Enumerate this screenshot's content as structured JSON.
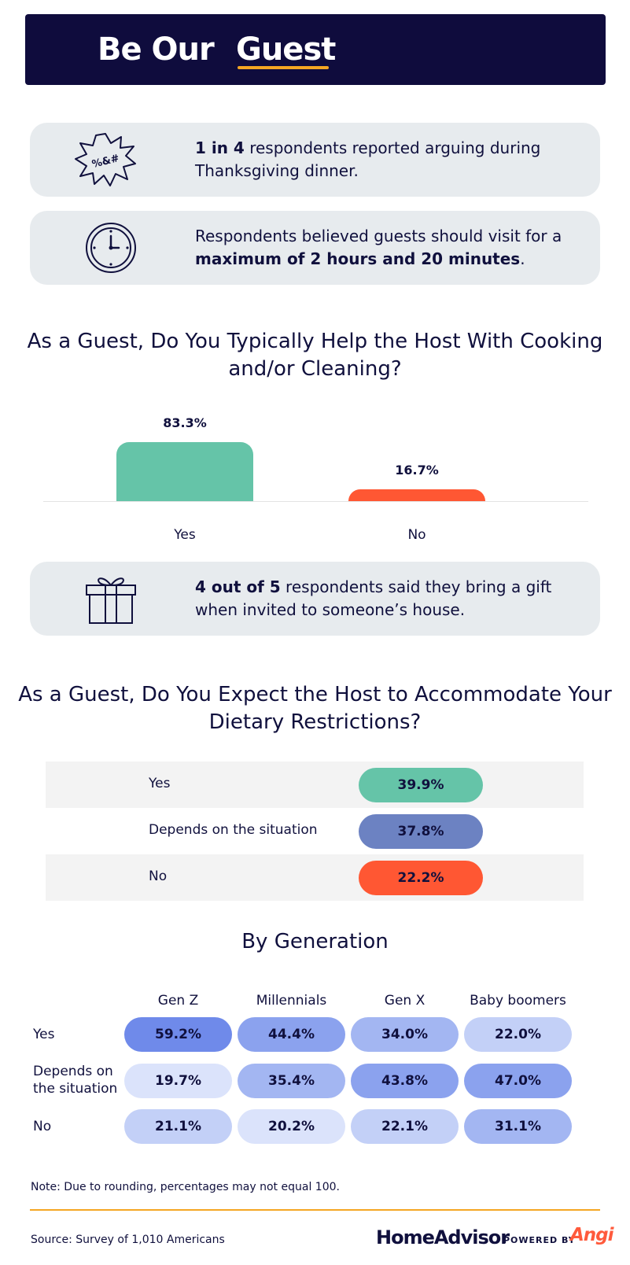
{
  "header": {
    "title_part1": "Be Our",
    "title_part2": "Guest",
    "accent": "#f5a623",
    "background": "#0f0c3d"
  },
  "facts": [
    {
      "icon": "grawlix-burst-icon",
      "bold": "1 in 4",
      "text": " respondents reported arguing during Thanksgiving dinner.",
      "after": ""
    },
    {
      "icon": "clock-icon",
      "lead": "Respondents believed guests should visit for a ",
      "bold": "maximum of 2 hours and 20 minutes",
      "after": "."
    },
    {
      "icon": "gift-icon",
      "bold": "4 out of 5",
      "text": " respondents said they bring a gift when invited to someone’s house.",
      "after": ""
    }
  ],
  "chart_data": [
    {
      "type": "bar",
      "title": "As a Guest, Do You Typically Help the Host With Cooking and/or Cleaning?",
      "categories": [
        "Yes",
        "No"
      ],
      "values": [
        83.3,
        16.7
      ],
      "value_labels": [
        "83.3%",
        "16.7%"
      ],
      "colors": [
        "#65c4a8",
        "#ff5733"
      ],
      "ylim": [
        0,
        100
      ],
      "grid": false
    },
    {
      "type": "table",
      "title": "As a Guest, Do You Expect the Host to Accommodate Your Dietary Restrictions?",
      "rows": [
        {
          "label": "Yes",
          "value": 39.9,
          "display": "39.9%",
          "color": "#65c4a8"
        },
        {
          "label": "Depends on the situation",
          "value": 37.8,
          "display": "37.8%",
          "color": "#6c82c2"
        },
        {
          "label": "No",
          "value": 22.2,
          "display": "22.2%",
          "color": "#ff5733"
        }
      ]
    },
    {
      "type": "heatmap",
      "title": "By Generation",
      "columns": [
        "Gen Z",
        "Millennials",
        "Gen X",
        "Baby boomers"
      ],
      "rows": [
        {
          "label": "Yes",
          "values": [
            59.2,
            44.4,
            34.0,
            22.0
          ],
          "display": [
            "59.2%",
            "44.4%",
            "34.0%",
            "22.0%"
          ]
        },
        {
          "label": "Depends on the situation",
          "label_lines": [
            "Depends on",
            "the situation"
          ],
          "values": [
            19.7,
            35.4,
            43.8,
            47.0
          ],
          "display": [
            "19.7%",
            "35.4%",
            "43.8%",
            "47.0%"
          ]
        },
        {
          "label": "No",
          "values": [
            21.1,
            20.2,
            22.1,
            31.1
          ],
          "display": [
            "21.1%",
            "20.2%",
            "22.1%",
            "31.1%"
          ]
        }
      ],
      "color_scale": [
        "#dbe3fb",
        "#c3d0f7",
        "#a3b6f2",
        "#8ba2ee",
        "#6f8aea"
      ]
    }
  ],
  "note": "Note: Due to rounding, percentages may not equal 100.",
  "source": "Source: Survey of 1,010 Americans",
  "branding": {
    "brand": "HomeAdvisor",
    "powered_by": "POWERED BY",
    "partner": "Angi",
    "partner_color": "#ff5a3c"
  }
}
